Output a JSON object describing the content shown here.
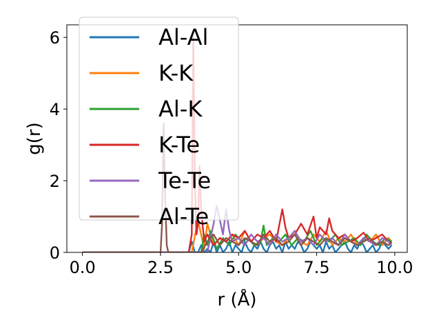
{
  "chart_data": {
    "type": "line",
    "title": "",
    "xlabel": "r (Å)",
    "ylabel": "g(r)",
    "xlim": [
      -0.5,
      10.4
    ],
    "ylim": [
      0,
      6.35
    ],
    "xticks": [
      0.0,
      2.5,
      5.0,
      7.5,
      10.0
    ],
    "xtick_labels": [
      "0.0",
      "2.5",
      "5.0",
      "7.5",
      "10.0"
    ],
    "yticks": [
      0,
      2,
      4,
      6
    ],
    "ytick_labels": [
      "0",
      "2",
      "4",
      "6"
    ],
    "grid": false,
    "legend_position": "upper-left",
    "series": [
      {
        "name": "Al-Al",
        "color": "#1f77b4",
        "x": [
          0,
          2.5,
          3.4,
          3.5,
          3.6,
          3.7,
          3.8,
          3.9,
          4.0,
          4.1,
          4.2,
          4.3,
          4.4,
          4.5,
          4.6,
          4.7,
          4.8,
          4.9,
          5.0,
          5.1,
          5.2,
          5.3,
          5.4,
          5.5,
          5.6,
          5.7,
          5.8,
          5.9,
          6.0,
          6.1,
          6.2,
          6.3,
          6.4,
          6.5,
          6.6,
          6.7,
          6.8,
          6.9,
          7.0,
          7.1,
          7.2,
          7.3,
          7.4,
          7.5,
          7.6,
          7.7,
          7.8,
          7.9,
          8.0,
          8.1,
          8.2,
          8.3,
          8.4,
          8.5,
          8.6,
          8.7,
          8.8,
          8.9,
          9.0,
          9.1,
          9.2,
          9.3,
          9.4,
          9.5,
          9.6,
          9.7,
          9.8,
          9.9
        ],
        "y": [
          0,
          0,
          0,
          0.3,
          0,
          0,
          0.2,
          0,
          0.1,
          0,
          0.3,
          0,
          0.2,
          0,
          0.1,
          0.3,
          0,
          0.2,
          0.1,
          0,
          0.3,
          0.1,
          0,
          0.2,
          0.1,
          0.3,
          0.1,
          0,
          0.2,
          0.3,
          0.1,
          0.2,
          0,
          0.3,
          0.1,
          0.2,
          0.1,
          0.3,
          0.2,
          0,
          0.1,
          0.3,
          0.2,
          0.1,
          0.2,
          0,
          0.3,
          0.1,
          0.2,
          0,
          0.1,
          0.2,
          0.3,
          0.1,
          0,
          0.2,
          0.1,
          0.3,
          0.2,
          0,
          0.1,
          0.2,
          0,
          0.1,
          0.3,
          0.2,
          0.1,
          0.2
        ]
      },
      {
        "name": "K-K",
        "color": "#ff7f0e",
        "x": [
          0,
          3.0,
          3.5,
          3.7,
          3.8,
          3.9,
          4.0,
          4.2,
          4.4,
          4.6,
          4.8,
          5.0,
          5.2,
          5.4,
          5.6,
          5.8,
          6.0,
          6.2,
          6.4,
          6.6,
          6.8,
          7.0,
          7.2,
          7.4,
          7.6,
          7.8,
          8.0,
          8.2,
          8.4,
          8.6,
          8.8,
          9.0,
          9.2,
          9.4,
          9.6,
          9.8,
          9.9
        ],
        "y": [
          0,
          0,
          0,
          0.9,
          0.5,
          0.1,
          0.8,
          0.2,
          0.4,
          0.3,
          0.5,
          0.2,
          0.6,
          0.3,
          0.2,
          0.4,
          0.5,
          0.3,
          0.2,
          0.4,
          0.6,
          0.3,
          0.2,
          0.5,
          0.3,
          0.6,
          0.2,
          0.4,
          0.3,
          0.5,
          0.2,
          0.4,
          0.3,
          0.5,
          0.2,
          0.4,
          0.3
        ]
      },
      {
        "name": "Al-K",
        "color": "#2ca02c",
        "x": [
          0,
          3.0,
          3.8,
          3.9,
          4.0,
          4.1,
          4.3,
          4.5,
          4.7,
          4.9,
          5.1,
          5.3,
          5.5,
          5.7,
          5.8,
          5.9,
          6.1,
          6.3,
          6.5,
          6.7,
          6.9,
          7.1,
          7.3,
          7.5,
          7.7,
          7.9,
          8.1,
          8.3,
          8.5,
          8.7,
          8.9,
          9.1,
          9.3,
          9.5,
          9.7,
          9.9
        ],
        "y": [
          0,
          0,
          0,
          0.5,
          0.2,
          0.6,
          0.1,
          0.4,
          0.2,
          0.5,
          0.3,
          0.4,
          0.2,
          0.3,
          0.75,
          0.2,
          0.4,
          0.3,
          0.5,
          0.2,
          0.4,
          0.3,
          0.6,
          0.2,
          0.4,
          0.3,
          0.5,
          0.2,
          0.3,
          0.4,
          0.2,
          0.5,
          0.3,
          0.2,
          0.4,
          0.3
        ]
      },
      {
        "name": "K-Te",
        "color": "#d62728",
        "x": [
          0,
          3.4,
          3.5,
          3.55,
          3.6,
          3.65,
          3.7,
          3.75,
          3.8,
          3.9,
          4.0,
          4.2,
          4.4,
          4.6,
          4.8,
          5.0,
          5.2,
          5.4,
          5.6,
          5.8,
          6.0,
          6.2,
          6.4,
          6.5,
          6.6,
          6.8,
          7.0,
          7.2,
          7.4,
          7.5,
          7.6,
          7.8,
          7.9,
          8.0,
          8.2,
          8.4,
          8.6,
          8.8,
          9.0,
          9.2,
          9.4,
          9.6,
          9.8,
          9.9
        ],
        "y": [
          0,
          0,
          0.5,
          6.0,
          2.0,
          0.5,
          0.8,
          2.4,
          1.2,
          0.3,
          0.5,
          0.2,
          0.4,
          0.3,
          0.5,
          0.4,
          0.6,
          0.3,
          0.5,
          0.4,
          0.6,
          0.3,
          1.2,
          0.7,
          0.4,
          0.5,
          0.8,
          0.5,
          1.0,
          0.4,
          0.7,
          0.5,
          0.95,
          0.6,
          0.4,
          0.5,
          0.3,
          0.4,
          0.55,
          0.3,
          0.4,
          0.5,
          0.3,
          0.25
        ]
      },
      {
        "name": "Te-Te",
        "color": "#9467bd",
        "x": [
          0,
          3.8,
          4.0,
          4.1,
          4.2,
          4.3,
          4.4,
          4.5,
          4.6,
          4.7,
          4.8,
          5.0,
          5.2,
          5.4,
          5.6,
          5.8,
          6.0,
          6.2,
          6.4,
          6.6,
          6.8,
          7.0,
          7.2,
          7.4,
          7.6,
          7.8,
          8.0,
          8.2,
          8.4,
          8.6,
          8.8,
          9.0,
          9.2,
          9.4,
          9.6,
          9.8,
          9.9
        ],
        "y": [
          0,
          0,
          0,
          0.4,
          0.8,
          1.3,
          0.9,
          0.5,
          1.2,
          0.6,
          0.3,
          0.4,
          0.2,
          0.5,
          0.3,
          0.4,
          0.2,
          0.5,
          0.3,
          0.4,
          0.6,
          0.3,
          0.4,
          0.2,
          0.5,
          0.3,
          0.4,
          0.2,
          0.5,
          0.3,
          0.2,
          0.4,
          0.3,
          0.2,
          0.4,
          0.3,
          0.2
        ]
      },
      {
        "name": "Al-Te",
        "color": "#8c564b",
        "x": [
          0,
          2.5,
          2.55,
          2.6,
          2.65,
          2.7,
          2.75,
          3.0,
          3.5,
          3.8,
          4.0,
          4.2,
          4.4,
          4.6,
          4.8,
          5.0,
          5.2,
          5.4,
          5.6,
          5.8,
          6.0,
          6.2,
          6.4,
          6.6,
          6.8,
          7.0,
          7.2,
          7.4,
          7.6,
          7.8,
          8.0,
          8.2,
          8.4,
          8.6,
          8.8,
          9.0,
          9.2,
          9.4,
          9.6,
          9.8,
          9.9
        ],
        "y": [
          0,
          0,
          0.8,
          3.6,
          1.5,
          0.2,
          0,
          0,
          0,
          0,
          0.3,
          0.5,
          0.2,
          0.4,
          0.3,
          0.2,
          0.4,
          0.3,
          0.2,
          0.5,
          0.3,
          0.4,
          0.2,
          0.3,
          0.5,
          0.2,
          0.4,
          0.3,
          0.2,
          0.4,
          0.3,
          0.2,
          0.4,
          0.3,
          0.2,
          0.3,
          0.4,
          0.2,
          0.3,
          0.2,
          0.3
        ]
      }
    ]
  }
}
